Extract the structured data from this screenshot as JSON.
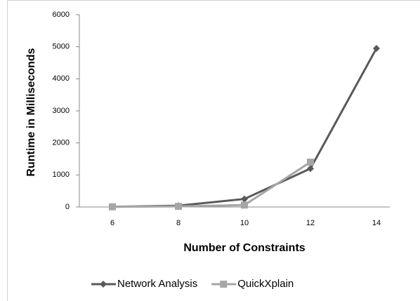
{
  "chart_data": {
    "type": "line",
    "x_label": "Number of Constraints",
    "y_label": "Runtime in Milliseconds",
    "categories": [
      "6",
      "8",
      "10",
      "12",
      "14"
    ],
    "series": [
      {
        "name": "Network Analysis",
        "color": "#595959",
        "marker": "diamond",
        "values": [
          5,
          40,
          250,
          1200,
          4950
        ]
      },
      {
        "name": "QuickXplain",
        "color": "#a6a6a6",
        "marker": "square",
        "values": [
          5,
          20,
          60,
          1400,
          null
        ]
      }
    ],
    "ylim": [
      0,
      6000
    ],
    "yticks": [
      0,
      1000,
      2000,
      3000,
      4000,
      5000,
      6000
    ],
    "legend": "bottom"
  }
}
